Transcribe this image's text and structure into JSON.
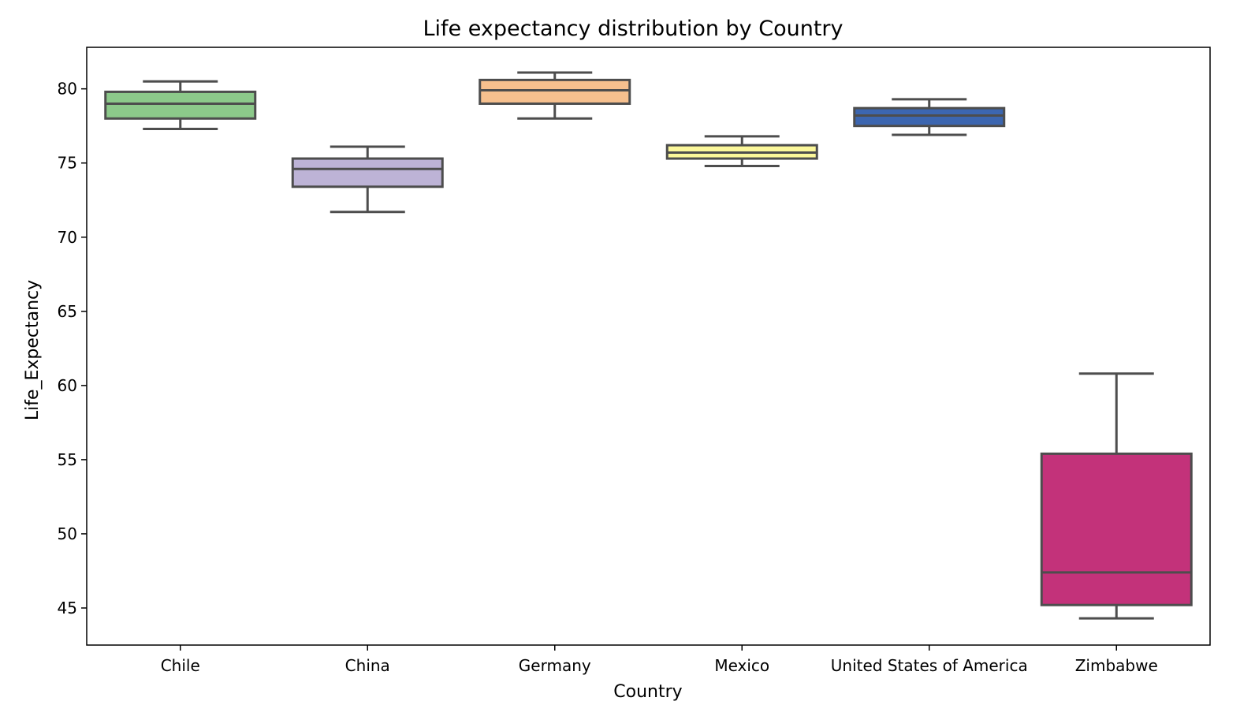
{
  "chart_data": {
    "type": "box",
    "title": "Life expectancy distribution by Country",
    "xlabel": "Country",
    "ylabel": "Life_Expectancy",
    "ylim": [
      42.5,
      82.8
    ],
    "yticks": [
      45,
      50,
      55,
      60,
      65,
      70,
      75,
      80
    ],
    "grid": false,
    "categories": [
      "Chile",
      "China",
      "Germany",
      "Mexico",
      "United States of America",
      "Zimbabwe"
    ],
    "boxes": [
      {
        "category": "Chile",
        "whisker_low": 77.3,
        "q1": 78.0,
        "median": 79.0,
        "q3": 79.8,
        "whisker_high": 80.5,
        "color": "#8cc98a"
      },
      {
        "category": "China",
        "whisker_low": 71.7,
        "q1": 73.4,
        "median": 74.6,
        "q3": 75.3,
        "whisker_high": 76.1,
        "color": "#bdb3d6"
      },
      {
        "category": "Germany",
        "whisker_low": 78.0,
        "q1": 79.0,
        "median": 79.9,
        "q3": 80.6,
        "whisker_high": 81.1,
        "color": "#f6c08e"
      },
      {
        "category": "Mexico",
        "whisker_low": 74.8,
        "q1": 75.3,
        "median": 75.7,
        "q3": 76.2,
        "whisker_high": 76.8,
        "color": "#fbf79a"
      },
      {
        "category": "United States of America",
        "whisker_low": 76.9,
        "q1": 77.5,
        "median": 78.2,
        "q3": 78.7,
        "whisker_high": 79.3,
        "color": "#3c66b0"
      },
      {
        "category": "Zimbabwe",
        "whisker_low": 44.3,
        "q1": 45.2,
        "median": 47.4,
        "q3": 55.4,
        "whisker_high": 60.8,
        "color": "#c3327a"
      }
    ]
  }
}
